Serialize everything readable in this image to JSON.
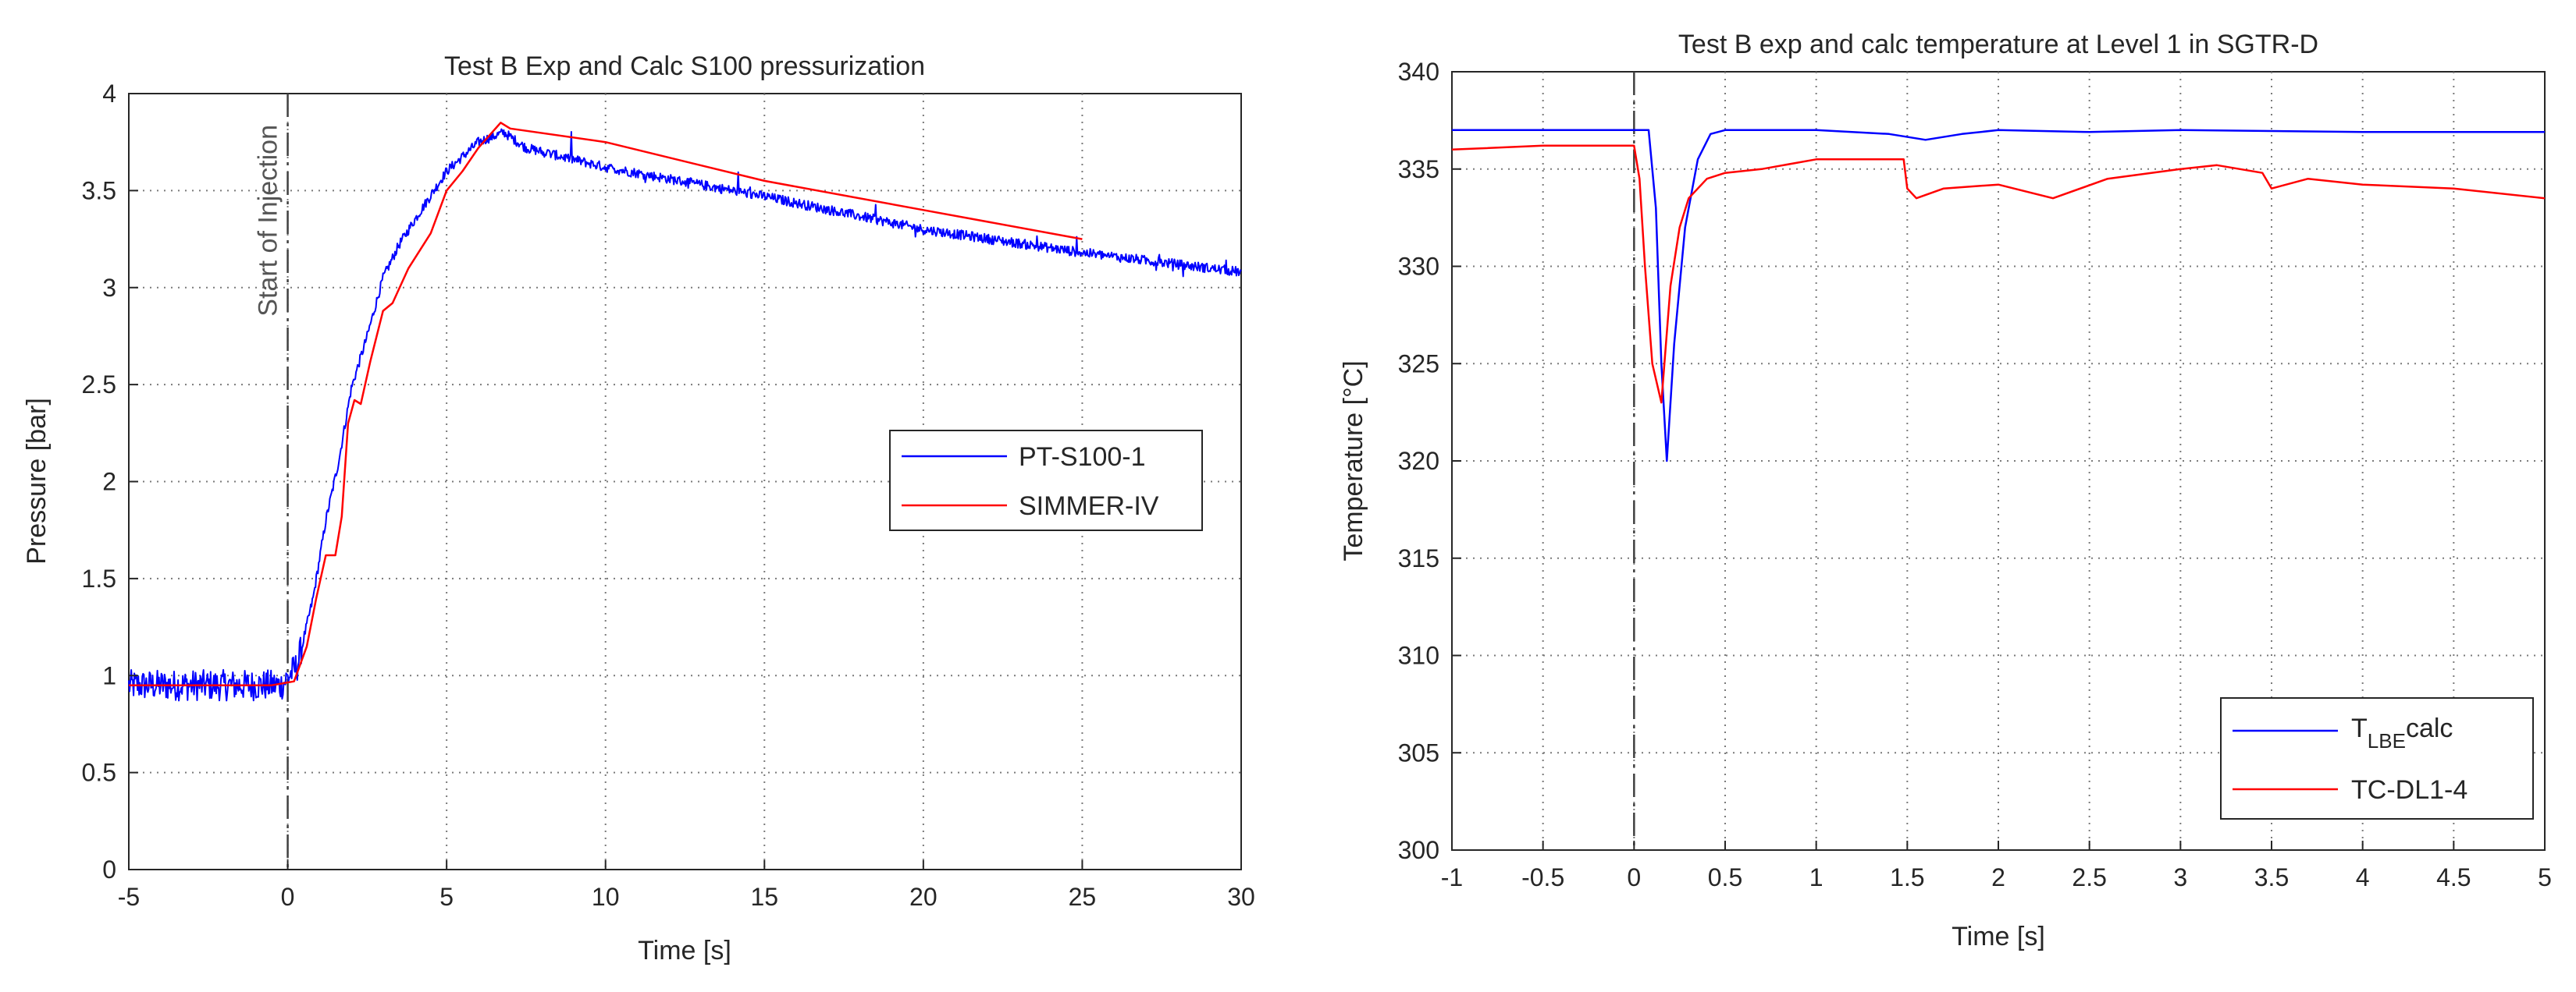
{
  "colors": {
    "exp_blue": "#0000ff",
    "calc_red": "#ff0000",
    "axis": "#262626",
    "grid": "#7a7a7a",
    "marker": "#404040"
  },
  "chart_data": [
    {
      "type": "line",
      "title": "Test B Exp and Calc S100 pressurization",
      "xlabel": "Time [s]",
      "ylabel": "Pressure [bar]",
      "xlim": [
        -5,
        30
      ],
      "ylim": [
        0,
        4
      ],
      "xticks": [
        -5,
        0,
        5,
        10,
        15,
        20,
        25,
        30
      ],
      "xtick_labels": [
        "-5",
        "0",
        "5",
        "10",
        "15",
        "20",
        "25",
        "30"
      ],
      "yticks": [
        0,
        0.5,
        1,
        1.5,
        2,
        2.5,
        3,
        3.5,
        4
      ],
      "ytick_labels": [
        "0",
        "0.5",
        "1",
        "1.5",
        "2",
        "2.5",
        "3",
        "3.5",
        "4"
      ],
      "grid": true,
      "legend_position": "right-middle",
      "annotation": {
        "text": "Start of Injection",
        "x": 0
      },
      "series": [
        {
          "name": "PT-S100-1",
          "color": "#0000ff",
          "noisy": true,
          "x": [
            -5,
            -1,
            -0.2,
            0.3,
            0.8,
            1.2,
            1.6,
            2.0,
            2.5,
            3.0,
            3.5,
            4.0,
            5.0,
            6.0,
            6.8,
            7.5,
            10,
            15,
            20,
            25,
            30
          ],
          "y": [
            0.95,
            0.95,
            0.95,
            1.05,
            1.4,
            1.8,
            2.1,
            2.48,
            2.75,
            3.05,
            3.22,
            3.35,
            3.6,
            3.75,
            3.8,
            3.72,
            3.62,
            3.47,
            3.3,
            3.18,
            3.08
          ]
        },
        {
          "name": "SIMMER-IV",
          "color": "#ff0000",
          "noisy": false,
          "x": [
            -5,
            -0.5,
            0.2,
            0.6,
            0.9,
            1.2,
            1.5,
            1.7,
            1.9,
            2.1,
            2.3,
            2.6,
            3.0,
            3.3,
            3.8,
            4.5,
            5.0,
            5.5,
            6.0,
            6.7,
            7.0,
            10,
            15,
            20,
            25
          ],
          "y": [
            0.95,
            0.95,
            0.97,
            1.15,
            1.4,
            1.62,
            1.62,
            1.82,
            2.3,
            2.42,
            2.4,
            2.62,
            2.88,
            2.92,
            3.1,
            3.28,
            3.5,
            3.6,
            3.72,
            3.85,
            3.82,
            3.75,
            3.55,
            3.4,
            3.25
          ]
        }
      ]
    },
    {
      "type": "line",
      "title": "Test B exp and calc temperature at Level 1 in SGTR-D",
      "xlabel": "Time [s]",
      "ylabel": "Temperature [°C]",
      "xlim": [
        -1,
        5
      ],
      "ylim": [
        300,
        340
      ],
      "xticks": [
        -1,
        -0.5,
        0,
        0.5,
        1,
        1.5,
        2,
        2.5,
        3,
        3.5,
        4,
        4.5,
        5
      ],
      "xtick_labels": [
        "-1",
        "-0.5",
        "0",
        "0.5",
        "1",
        "1.5",
        "2",
        "2.5",
        "3",
        "3.5",
        "4",
        "4.5",
        "5"
      ],
      "yticks": [
        300,
        305,
        310,
        315,
        320,
        325,
        330,
        335,
        340
      ],
      "ytick_labels": [
        "300",
        "305",
        "310",
        "315",
        "320",
        "325",
        "330",
        "335",
        "340"
      ],
      "grid": true,
      "legend_position": "bottom-right",
      "annotation": {
        "text": "",
        "x": 0
      },
      "series": [
        {
          "name": "T_LBE calc",
          "label_main": "T",
          "label_sub": "LBE",
          "label_suffix": "calc",
          "color": "#0000ff",
          "noisy": false,
          "x": [
            -1,
            0.08,
            0.12,
            0.15,
            0.18,
            0.22,
            0.28,
            0.35,
            0.42,
            0.5,
            1.0,
            1.4,
            1.6,
            1.8,
            2.0,
            2.5,
            3.0,
            4.0,
            5.0
          ],
          "y": [
            337,
            337,
            333,
            325,
            320,
            326,
            332,
            335.5,
            336.8,
            337,
            337,
            336.8,
            336.5,
            336.8,
            337,
            336.9,
            337,
            336.9,
            336.9
          ]
        },
        {
          "name": "TC-DL1-4",
          "color": "#ff0000",
          "noisy": false,
          "x": [
            -1,
            -0.5,
            -0.1,
            0.0,
            0.03,
            0.06,
            0.1,
            0.15,
            0.2,
            0.25,
            0.3,
            0.4,
            0.5,
            0.7,
            1.0,
            1.3,
            1.48,
            1.5,
            1.55,
            1.7,
            2.0,
            2.3,
            2.6,
            3.0,
            3.2,
            3.45,
            3.5,
            3.7,
            4.0,
            4.5,
            5.0
          ],
          "y": [
            336,
            336.2,
            336.2,
            336.2,
            334.5,
            330,
            325,
            323,
            329,
            332,
            333.5,
            334.5,
            334.8,
            335,
            335.5,
            335.5,
            335.5,
            334.0,
            333.5,
            334.0,
            334.2,
            333.5,
            334.5,
            335.0,
            335.2,
            334.8,
            334.0,
            334.5,
            334.2,
            334.0,
            333.5
          ]
        }
      ]
    }
  ]
}
